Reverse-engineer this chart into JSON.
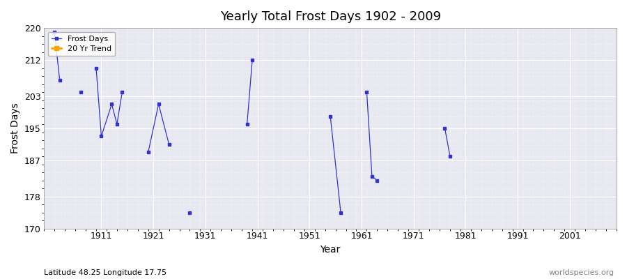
{
  "title": "Yearly Total Frost Days 1902 - 2009",
  "xlabel": "Year",
  "ylabel": "Frost Days",
  "subtitle_left": "Latitude 48.25 Longitude 17.75",
  "subtitle_right": "worldspecies.org",
  "ylim": [
    170,
    220
  ],
  "xlim": [
    1900,
    2010
  ],
  "yticks": [
    170,
    178,
    187,
    195,
    203,
    212,
    220
  ],
  "xticks": [
    1911,
    1921,
    1931,
    1941,
    1951,
    1961,
    1971,
    1981,
    1991,
    2001
  ],
  "line_color": "#3333cc",
  "trend_color": "#FFA500",
  "bg_color": "#e8e8f0",
  "data_x": [
    1902,
    1903,
    1907,
    1910,
    1911,
    1913,
    1914,
    1915,
    1920,
    1922,
    1924,
    1928,
    1939,
    1940,
    1955,
    1957,
    1962,
    1963,
    1964,
    1977,
    1978
  ],
  "data_y": [
    219,
    207,
    204,
    210,
    193,
    201,
    196,
    204,
    189,
    201,
    191,
    174,
    196,
    212,
    198,
    174,
    204,
    183,
    182,
    195,
    188
  ]
}
